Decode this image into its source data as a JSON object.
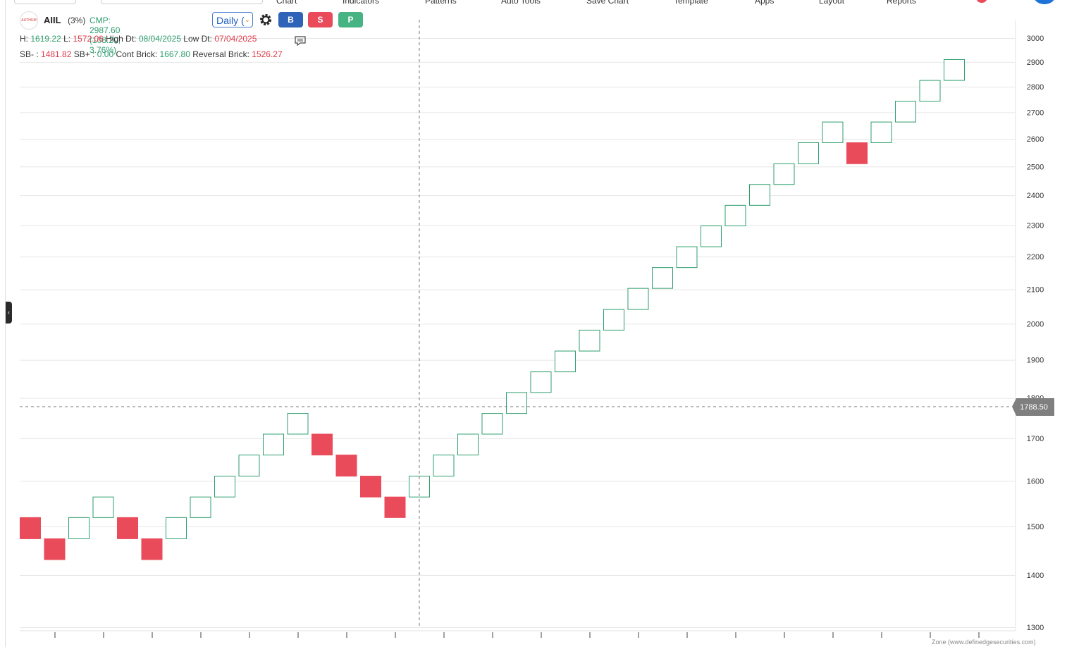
{
  "top_menu": [
    "Chart",
    "Indicators",
    "Patterns",
    "Auto Tools",
    "Save Chart",
    "Template",
    "Apps",
    "Layout",
    "Reports"
  ],
  "header": {
    "logo_text": "AUTHUM",
    "symbol": "AIIL",
    "box_pct": "(3%)",
    "cmp": "CMP: 2987.60 (108.20, 3.76%)",
    "timeframe": "Daily (",
    "buy_label": "B",
    "sell_label": "S",
    "p_label": "P"
  },
  "stats": {
    "h_label": "H:",
    "h_value": "1619.22",
    "l_label": "L:",
    "l_value": "1572.06",
    "high_dt_label": "High Dt:",
    "high_dt_value": "08/04/2025",
    "low_dt_label": "Low Dt:",
    "low_dt_value": "07/04/2025",
    "sbm_label": "SB- :",
    "sbm_value": "1481.82",
    "sbp_label": "SB+ :",
    "sbp_value": "0.00",
    "cont_label": "Cont Brick:",
    "cont_value": "1667.80",
    "rev_label": "Reversal Brick:",
    "rev_value": "1526.27"
  },
  "crosshair_price": "1788.50",
  "watermark": "Zone (www.definedgesecurities.com)",
  "colors": {
    "up": "#2e9e6e",
    "down": "#e94b5b",
    "grid": "#e6e6e6",
    "tag": "#7f7f7f"
  },
  "chart_data": {
    "type": "renko",
    "box_size_pct": 3,
    "y_scale": "log",
    "ylim": [
      1300,
      3000
    ],
    "y_ticks": [
      1300,
      1400,
      1500,
      1600,
      1700,
      1800,
      1900,
      2000,
      2100,
      2200,
      2300,
      2400,
      2500,
      2600,
      2700,
      2800,
      2900,
      3000
    ],
    "bricks": [
      {
        "dir": "down",
        "low": 1474,
        "high": 1519
      },
      {
        "dir": "down",
        "low": 1431,
        "high": 1474
      },
      {
        "dir": "up",
        "low": 1474,
        "high": 1519
      },
      {
        "dir": "up",
        "low": 1519,
        "high": 1564
      },
      {
        "dir": "down",
        "low": 1474,
        "high": 1519
      },
      {
        "dir": "down",
        "low": 1431,
        "high": 1474
      },
      {
        "dir": "up",
        "low": 1474,
        "high": 1519
      },
      {
        "dir": "up",
        "low": 1519,
        "high": 1564
      },
      {
        "dir": "up",
        "low": 1564,
        "high": 1611
      },
      {
        "dir": "up",
        "low": 1611,
        "high": 1660
      },
      {
        "dir": "up",
        "low": 1660,
        "high": 1710
      },
      {
        "dir": "up",
        "low": 1710,
        "high": 1761
      },
      {
        "dir": "down",
        "low": 1660,
        "high": 1710
      },
      {
        "dir": "down",
        "low": 1611,
        "high": 1660
      },
      {
        "dir": "down",
        "low": 1564,
        "high": 1611
      },
      {
        "dir": "down",
        "low": 1519,
        "high": 1564
      },
      {
        "dir": "up",
        "low": 1564,
        "high": 1611
      },
      {
        "dir": "up",
        "low": 1611,
        "high": 1660
      },
      {
        "dir": "up",
        "low": 1660,
        "high": 1710
      },
      {
        "dir": "up",
        "low": 1710,
        "high": 1761
      },
      {
        "dir": "up",
        "low": 1761,
        "high": 1814
      },
      {
        "dir": "up",
        "low": 1814,
        "high": 1868
      },
      {
        "dir": "up",
        "low": 1868,
        "high": 1924
      },
      {
        "dir": "up",
        "low": 1924,
        "high": 1982
      },
      {
        "dir": "up",
        "low": 1982,
        "high": 2041
      },
      {
        "dir": "up",
        "low": 2041,
        "high": 2103
      },
      {
        "dir": "up",
        "low": 2103,
        "high": 2166
      },
      {
        "dir": "up",
        "low": 2166,
        "high": 2231
      },
      {
        "dir": "up",
        "low": 2231,
        "high": 2298
      },
      {
        "dir": "up",
        "low": 2298,
        "high": 2366
      },
      {
        "dir": "up",
        "low": 2366,
        "high": 2437
      },
      {
        "dir": "up",
        "low": 2437,
        "high": 2510
      },
      {
        "dir": "up",
        "low": 2510,
        "high": 2586
      },
      {
        "dir": "up",
        "low": 2586,
        "high": 2663
      },
      {
        "dir": "down",
        "low": 2510,
        "high": 2586
      },
      {
        "dir": "up",
        "low": 2586,
        "high": 2663
      },
      {
        "dir": "up",
        "low": 2663,
        "high": 2743
      },
      {
        "dir": "up",
        "low": 2743,
        "high": 2825
      },
      {
        "dir": "up",
        "low": 2825,
        "high": 2910
      }
    ],
    "grid": true
  }
}
